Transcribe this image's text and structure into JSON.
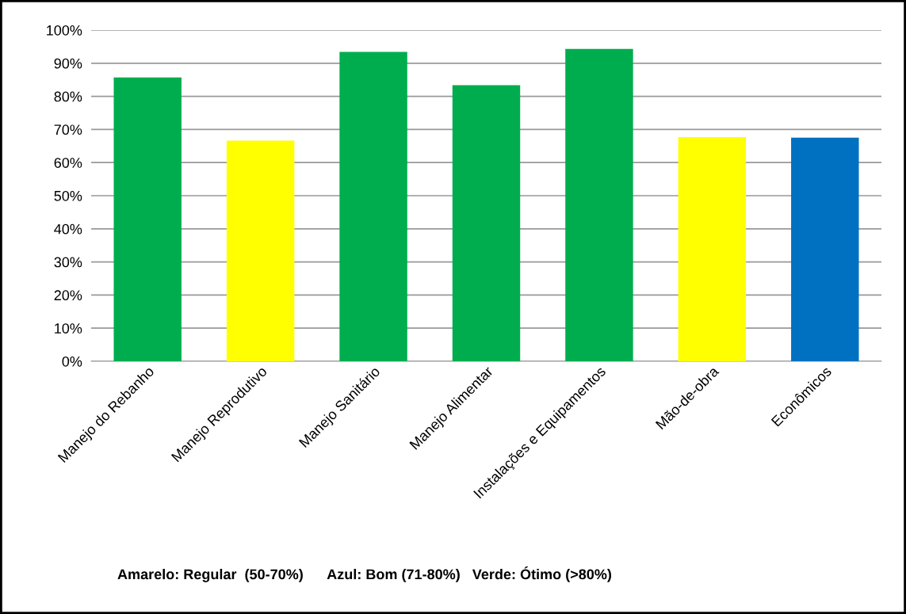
{
  "chart_data": {
    "type": "bar",
    "categories": [
      "Manejo do Rebanho",
      "Manejo Reprodutivo",
      "Manejo Sanitário",
      "Manejo Alimentar",
      "Instalações e Equipamentos",
      "Mão-de-obra",
      "Econômicos"
    ],
    "values": [
      85.7,
      66.6,
      93.4,
      83.4,
      94.3,
      67.7,
      67.5
    ],
    "colors": [
      "#00ad4e",
      "#ffff00",
      "#00ad4e",
      "#00ad4e",
      "#00ad4e",
      "#ffff00",
      "#0070c0"
    ],
    "ylim": [
      0,
      100
    ],
    "yticks": [
      {
        "value": 0,
        "label": "0%"
      },
      {
        "value": 10,
        "label": "10%"
      },
      {
        "value": 20,
        "label": "20%"
      },
      {
        "value": 30,
        "label": "30%"
      },
      {
        "value": 40,
        "label": "40%"
      },
      {
        "value": 50,
        "label": "50%"
      },
      {
        "value": 60,
        "label": "60%"
      },
      {
        "value": 70,
        "label": "70%"
      },
      {
        "value": 80,
        "label": "80%"
      },
      {
        "value": 90,
        "label": "90%"
      },
      {
        "value": 100,
        "label": "100%"
      }
    ],
    "grid": "y",
    "annotations": [
      "Amarelo: Regular  (50-70%)      Azul: Bom (71-80%)   Verde: Ótimo (>80%)"
    ]
  }
}
